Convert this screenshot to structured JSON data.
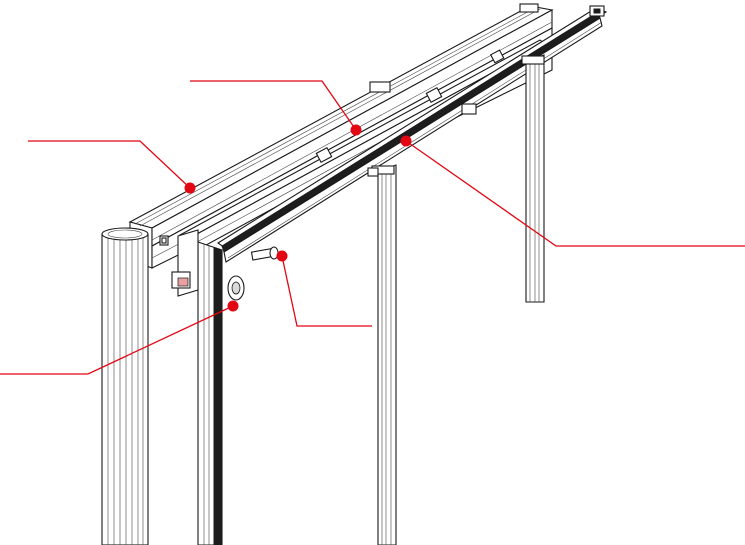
{
  "diagram": {
    "callout_color": "#e30613",
    "line_color": "#1a1a1a",
    "callouts": [
      {
        "id": "top-rail-front"
      },
      {
        "id": "top-rail-back"
      },
      {
        "id": "glass-track"
      },
      {
        "id": "hinge-bolt"
      },
      {
        "id": "wall-roller"
      }
    ]
  }
}
